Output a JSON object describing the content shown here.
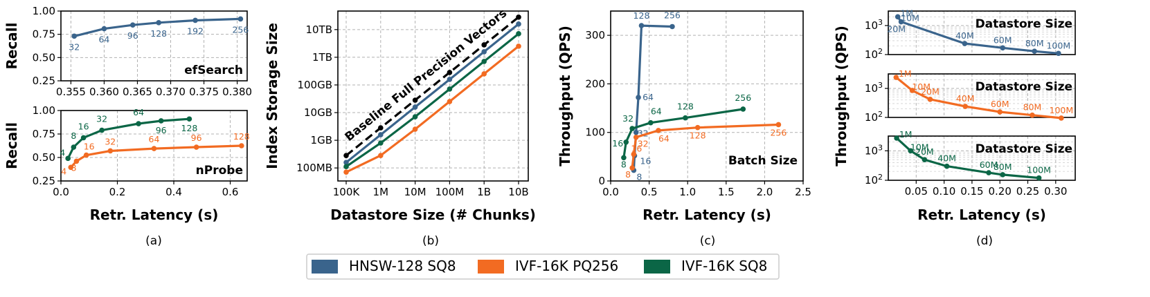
{
  "colors": {
    "hnsw": "#3a648c",
    "pq": "#f26b22",
    "sq8": "#0b6646",
    "baseline": "#000000"
  },
  "legend": [
    {
      "label": "HNSW-128 SQ8",
      "color": "#3a648c"
    },
    {
      "label": "IVF-16K PQ256",
      "color": "#f26b22"
    },
    {
      "label": "IVF-16K SQ8",
      "color": "#0b6646"
    }
  ],
  "chart_data": [
    {
      "id": "a_top",
      "type": "line",
      "subplot": "(a)",
      "title": "efSearch",
      "xlabel": "",
      "ylabel": "Recall",
      "xlim": [
        0.3535,
        0.3815
      ],
      "ylim": [
        0.25,
        1.0
      ],
      "xticks": [
        "0.355",
        "0.360",
        "0.365",
        "0.370",
        "0.375",
        "0.380"
      ],
      "yticks": [
        "0.25",
        "0.50",
        "0.75",
        "1.00"
      ],
      "series": [
        {
          "name": "HNSW-128 SQ8",
          "x": [
            0.3555,
            0.36,
            0.3643,
            0.3682,
            0.3737,
            0.3805
          ],
          "y": [
            0.73,
            0.81,
            0.85,
            0.875,
            0.9,
            0.915
          ],
          "labels": [
            "32",
            "64",
            "96",
            "128",
            "192",
            "256"
          ]
        }
      ]
    },
    {
      "id": "a_bottom",
      "type": "line",
      "subplot": "(a)",
      "title": "nProbe",
      "xlabel": "Retr. Latency (s)",
      "ylabel": "Recall",
      "xlim": [
        0,
        0.66
      ],
      "ylim": [
        0.25,
        1.0
      ],
      "xticks": [
        "0.0",
        "0.2",
        "0.4",
        "0.6"
      ],
      "yticks": [
        "0.25",
        "0.50",
        "0.75",
        "1.00"
      ],
      "series": [
        {
          "name": "IVF-16K SQ8",
          "x": [
            0.025,
            0.045,
            0.08,
            0.145,
            0.275,
            0.355,
            0.455
          ],
          "y": [
            0.49,
            0.61,
            0.71,
            0.79,
            0.86,
            0.89,
            0.91
          ],
          "labels": [
            "4",
            "8",
            "16",
            "32",
            "64",
            "96",
            "128"
          ]
        },
        {
          "name": "IVF-16K PQ256",
          "x": [
            0.035,
            0.055,
            0.09,
            0.175,
            0.33,
            0.48,
            0.64
          ],
          "y": [
            0.395,
            0.46,
            0.525,
            0.57,
            0.595,
            0.61,
            0.625
          ],
          "labels": [
            "4",
            "8",
            "16",
            "32",
            "64",
            "96",
            "128"
          ]
        }
      ]
    },
    {
      "id": "b",
      "type": "line",
      "subplot": "(b)",
      "title": "",
      "xlabel": "Datastore Size (# Chunks)",
      "ylabel": "Index Storage Size",
      "xticks": [
        "100K",
        "1M",
        "10M",
        "100M",
        "1B",
        "10B"
      ],
      "yticks": [
        "100MB",
        "1GB",
        "10GB",
        "100GB",
        "1TB",
        "10TB"
      ],
      "ylim_log10_bytes": [
        7.53,
        13.67
      ],
      "annotation": "Baseline Full Precision Vectors",
      "series": [
        {
          "name": "Baseline Full Precision Vectors",
          "x_log10": [
            5,
            6,
            7,
            8,
            9,
            10
          ],
          "y_log10_bytes": [
            8.45,
            9.45,
            10.45,
            11.45,
            12.45,
            13.45
          ]
        },
        {
          "name": "HNSW-128 SQ8",
          "x_log10": [
            5,
            6,
            7,
            8,
            9,
            10
          ],
          "y_log10_bytes": [
            8.2,
            9.2,
            10.2,
            11.2,
            12.2,
            13.2
          ]
        },
        {
          "name": "IVF-16K SQ8",
          "x_log10": [
            5,
            6,
            7,
            8,
            9,
            10
          ],
          "y_log10_bytes": [
            8.05,
            8.9,
            9.85,
            10.85,
            11.85,
            12.85
          ]
        },
        {
          "name": "IVF-16K PQ256",
          "x_log10": [
            5,
            6,
            7,
            8,
            9,
            10
          ],
          "y_log10_bytes": [
            7.85,
            8.45,
            9.4,
            10.4,
            11.4,
            12.4
          ]
        }
      ]
    },
    {
      "id": "c",
      "type": "line",
      "subplot": "(c)",
      "title": "Batch Size",
      "xlabel": "Retr. Latency (s)",
      "ylabel": "Throughput (QPS)",
      "xlim": [
        0,
        2.5
      ],
      "ylim": [
        0,
        350
      ],
      "xticks": [
        "0.0",
        "0.5",
        "1.0",
        "1.5",
        "2.0",
        "2.5"
      ],
      "yticks": [
        "0",
        "100",
        "200",
        "300"
      ],
      "series": [
        {
          "name": "HNSW-128 SQ8",
          "x": [
            0.3,
            0.31,
            0.33,
            0.36,
            0.4,
            0.8
          ],
          "y": [
            22,
            52,
            100,
            172,
            320,
            318
          ],
          "labels": [
            "8",
            "16",
            "32",
            "64",
            "128",
            "256"
          ]
        },
        {
          "name": "IVF-16K SQ8",
          "x": [
            0.17,
            0.2,
            0.28,
            0.52,
            0.97,
            1.72
          ],
          "y": [
            48,
            80,
            108,
            120,
            130,
            148
          ],
          "labels": [
            "8",
            "16",
            "32",
            "64",
            "128",
            "256"
          ]
        },
        {
          "name": "IVF-16K PQ256",
          "x": [
            0.28,
            0.3,
            0.33,
            0.62,
            1.13,
            2.18
          ],
          "y": [
            27,
            55,
            90,
            104,
            110,
            116
          ],
          "labels": [
            "8",
            "16",
            "32",
            "64",
            "128",
            "256"
          ]
        }
      ]
    },
    {
      "id": "d",
      "type": "line",
      "subplot": "(d)",
      "title": "Datastore Size",
      "xlabel": "Retr. Latency (s)",
      "ylabel": "Throughput (QPS)",
      "xlim": [
        0.0,
        0.335
      ],
      "ylim_log10": [
        2.0,
        3.5
      ],
      "xticks": [
        "0.05",
        "0.10",
        "0.15",
        "0.20",
        "0.25",
        "0.30"
      ],
      "yticks": [
        "10^2",
        "10^3"
      ],
      "panels": [
        {
          "name": "HNSW-128 SQ8",
          "x": [
            0.017,
            0.023,
            0.137,
            0.205,
            0.262,
            0.305
          ],
          "y": [
            2000,
            1350,
            240,
            170,
            130,
            110
          ],
          "labels": [
            "1M",
            "10M",
            "40M",
            "60M",
            "80M",
            "100M"
          ],
          "extra_label": "20M"
        },
        {
          "name": "IVF-16K PQ256",
          "x": [
            0.014,
            0.043,
            0.075,
            0.138,
            0.2,
            0.258,
            0.31
          ],
          "y": [
            2400,
            850,
            420,
            240,
            155,
            120,
            95
          ],
          "labels": [
            "1M",
            "10M",
            "20M",
            "40M",
            "60M",
            "80M",
            "100M"
          ]
        },
        {
          "name": "IVF-16K SQ8",
          "x": [
            0.015,
            0.04,
            0.065,
            0.105,
            0.18,
            0.205,
            0.27
          ],
          "y": [
            2700,
            1000,
            500,
            300,
            180,
            155,
            120
          ],
          "labels": [
            "1M",
            "10M",
            "20M",
            "40M",
            "60M",
            "80M",
            "100M"
          ]
        }
      ]
    }
  ],
  "captions": [
    "(a)",
    "(b)",
    "(c)",
    "(d)"
  ]
}
